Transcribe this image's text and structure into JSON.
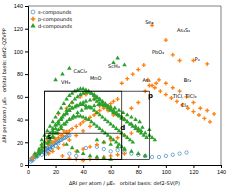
{
  "chart_data": {
    "type": "scatter",
    "title": "",
    "xlabel": "ΔRI per atom / μEₕ   orbital basis: def2-SV(P)",
    "ylabel": "ΔRI per atom / μEₕ   orbital basis: def2-QZVPP",
    "xlim": [
      0,
      140
    ],
    "ylim": [
      0,
      140
    ],
    "xticks": [
      0,
      20,
      40,
      60,
      80,
      100,
      120,
      140
    ],
    "yticks": [
      0,
      20,
      40,
      60,
      80,
      100,
      120,
      140
    ],
    "legend": "upper left",
    "series": [
      {
        "name": "s-compounds",
        "marker": "open-circle",
        "x": [
          2,
          3,
          4,
          5,
          5,
          6,
          7,
          8,
          9,
          10,
          11,
          12,
          13,
          14,
          15,
          16,
          17,
          18,
          19,
          20,
          21,
          22,
          23,
          24,
          25,
          8,
          9,
          12,
          14,
          16,
          18,
          20,
          22,
          7,
          10,
          13,
          15,
          17,
          6,
          4,
          3,
          2,
          26,
          27,
          28,
          29,
          30,
          42,
          50,
          55,
          60,
          65,
          70,
          75,
          80,
          85,
          90,
          95,
          100,
          105,
          110,
          115,
          30,
          35
        ],
        "values": [
          5,
          6,
          7,
          8,
          9,
          8,
          10,
          11,
          12,
          12,
          13,
          14,
          14,
          15,
          16,
          16,
          17,
          18,
          19,
          20,
          20,
          21,
          22,
          22,
          23,
          10,
          11,
          11,
          13,
          14,
          16,
          17,
          19,
          8,
          9,
          10,
          12,
          13,
          7,
          5,
          4,
          3,
          24,
          24,
          25,
          26,
          26,
          15,
          16,
          14,
          12,
          13,
          11,
          10,
          9,
          8,
          7,
          7,
          8,
          9,
          10,
          11,
          10,
          8
        ]
      },
      {
        "name": "p-compounds",
        "marker": "plus",
        "x": [
          5,
          8,
          10,
          12,
          15,
          18,
          20,
          22,
          25,
          28,
          30,
          32,
          35,
          38,
          40,
          42,
          45,
          48,
          50,
          52,
          55,
          58,
          60,
          62,
          65,
          70,
          75,
          80,
          85,
          90,
          95,
          100,
          105,
          110,
          115,
          120,
          125,
          130,
          135,
          68,
          72,
          76,
          80,
          84,
          88,
          92,
          96,
          100,
          104,
          108,
          112,
          116,
          120,
          124,
          128,
          132,
          90,
          100,
          105,
          110,
          120,
          130,
          87,
          93,
          15,
          18,
          22,
          26,
          30,
          35,
          40,
          45,
          3,
          6,
          25,
          30,
          35,
          40,
          45,
          50,
          55,
          60,
          65,
          70,
          22,
          28,
          32,
          38,
          42,
          48,
          52,
          58,
          62,
          68,
          14,
          18,
          22,
          26,
          10,
          16,
          20,
          24,
          28,
          35,
          40,
          45,
          50,
          55,
          60,
          65,
          70,
          75,
          80
        ],
        "values": [
          8,
          12,
          14,
          16,
          18,
          20,
          22,
          24,
          26,
          28,
          30,
          32,
          34,
          36,
          38,
          40,
          42,
          44,
          46,
          48,
          50,
          52,
          54,
          56,
          58,
          40,
          50,
          55,
          65,
          70,
          75,
          72,
          68,
          65,
          60,
          55,
          50,
          48,
          45,
          72,
          76,
          80,
          84,
          88,
          70,
          68,
          65,
          62,
          59,
          56,
          53,
          50,
          47,
          44,
          41,
          38,
          123,
          110,
          97,
          92,
          92,
          89,
          75,
          72,
          10,
          12,
          15,
          18,
          22,
          26,
          30,
          34,
          6,
          9,
          8,
          6,
          5,
          4,
          5,
          6,
          7,
          8,
          9,
          10,
          45,
          50,
          55,
          60,
          62,
          58,
          52,
          48,
          44,
          42,
          22,
          25,
          28,
          30,
          18,
          20,
          23,
          26,
          29,
          12,
          14,
          16,
          18,
          20,
          22,
          24,
          26,
          28,
          30
        ]
      },
      {
        "name": "d-compounds",
        "marker": "triangle",
        "x": [
          5,
          8,
          10,
          12,
          15,
          18,
          20,
          22,
          25,
          28,
          30,
          32,
          35,
          38,
          40,
          42,
          45,
          48,
          50,
          52,
          55,
          58,
          60,
          62,
          65,
          68,
          70,
          72,
          75,
          78,
          80,
          82,
          85,
          88,
          90,
          92,
          18,
          20,
          22,
          24,
          26,
          28,
          30,
          32,
          34,
          36,
          38,
          40,
          42,
          44,
          46,
          48,
          50,
          52,
          54,
          56,
          58,
          60,
          62,
          64,
          66,
          68,
          70,
          72,
          74,
          76,
          78,
          80,
          82,
          84,
          86,
          10,
          12,
          14,
          16,
          18,
          20,
          22,
          24,
          26,
          28,
          30,
          32,
          34,
          36,
          38,
          40,
          42,
          44,
          46,
          48,
          50,
          52,
          54,
          56,
          58,
          60,
          62,
          64,
          66,
          68,
          15,
          18,
          21,
          24,
          27,
          30,
          33,
          36,
          39,
          42,
          45,
          48,
          51,
          54,
          57,
          60,
          63,
          66,
          69,
          72,
          75,
          78,
          81,
          8,
          10,
          12,
          14,
          16,
          18,
          20,
          22,
          24,
          26,
          28,
          30,
          32,
          34,
          36,
          38,
          40,
          42,
          44,
          46,
          48,
          50,
          52,
          54,
          56,
          58,
          60,
          62,
          64,
          66,
          68,
          70,
          72,
          74,
          76,
          6,
          8,
          10,
          12,
          14,
          16,
          18,
          20,
          22,
          24,
          26,
          28,
          30,
          32,
          34,
          36,
          38,
          40,
          42,
          44,
          46,
          48,
          50,
          52,
          54,
          56,
          58,
          60,
          62,
          64,
          66,
          68,
          70,
          50,
          55,
          60,
          65,
          70,
          75,
          80,
          85,
          20,
          25,
          30,
          62,
          65,
          70,
          83,
          88,
          28,
          32,
          36,
          40,
          45,
          50,
          55,
          60
        ],
        "values": [
          10,
          14,
          18,
          20,
          25,
          30,
          35,
          38,
          42,
          45,
          48,
          50,
          52,
          54,
          55,
          56,
          57,
          58,
          56,
          54,
          52,
          50,
          48,
          46,
          44,
          42,
          40,
          38,
          36,
          34,
          32,
          30,
          28,
          26,
          24,
          22,
          28,
          32,
          36,
          40,
          44,
          48,
          52,
          55,
          58,
          60,
          62,
          63,
          64,
          64,
          63,
          62,
          60,
          58,
          56,
          54,
          52,
          50,
          48,
          46,
          44,
          42,
          40,
          38,
          36,
          34,
          32,
          30,
          28,
          26,
          24,
          22,
          26,
          30,
          34,
          38,
          42,
          46,
          50,
          54,
          58,
          61,
          63,
          65,
          66,
          67,
          67,
          66,
          65,
          63,
          61,
          59,
          57,
          55,
          53,
          51,
          49,
          47,
          45,
          43,
          41,
          20,
          24,
          28,
          32,
          36,
          40,
          43,
          46,
          48,
          50,
          51,
          52,
          53,
          53,
          52,
          51,
          50,
          48,
          46,
          44,
          42,
          40,
          38,
          12,
          16,
          20,
          24,
          28,
          32,
          35,
          38,
          41,
          44,
          46,
          48,
          50,
          51,
          52,
          53,
          53,
          52,
          51,
          50,
          48,
          46,
          44,
          42,
          40,
          38,
          36,
          34,
          32,
          30,
          28,
          26,
          24,
          22,
          20,
          8,
          10,
          13,
          16,
          19,
          22,
          25,
          28,
          31,
          34,
          36,
          38,
          40,
          41,
          42,
          43,
          43,
          42,
          41,
          40,
          38,
          36,
          34,
          32,
          30,
          28,
          26,
          24,
          22,
          20,
          18,
          16,
          14,
          22,
          20,
          18,
          16,
          14,
          12,
          10,
          8,
          75,
          80,
          85,
          90,
          94,
          88,
          33,
          31,
          18,
          15,
          12,
          10,
          8,
          7,
          6,
          5
        ]
      }
    ],
    "boxes": [
      {
        "x0": 12,
        "x1": 68,
        "y0": 5,
        "y1": 28,
        "label": "s",
        "label_x": 14,
        "label_y": 23
      },
      {
        "x0": 12,
        "x1": 68,
        "y0": 5,
        "y1": 65,
        "label": "d",
        "label_x": 67,
        "label_y": 31
      },
      {
        "x0": 12,
        "x1": 88,
        "y0": 5,
        "y1": 65,
        "label": "p",
        "label_x": 87,
        "label_y": 59
      }
    ],
    "annotations": [
      {
        "text": "Se₈",
        "x": 85,
        "y": 124
      },
      {
        "text": "As₄S₄",
        "x": 108,
        "y": 117
      },
      {
        "text": "PbO₂",
        "x": 90,
        "y": 98
      },
      {
        "text": "P₄",
        "x": 121,
        "y": 92
      },
      {
        "text": "As₄",
        "x": 83,
        "y": 73
      },
      {
        "text": "Br₂",
        "x": 113,
        "y": 73
      },
      {
        "text": "TlCl, TlCl₃",
        "x": 105,
        "y": 59
      },
      {
        "text": "Cl₂",
        "x": 111,
        "y": 51
      },
      {
        "text": "ScH₃",
        "x": 58,
        "y": 85
      },
      {
        "text": "MnO",
        "x": 45,
        "y": 75
      },
      {
        "text": "CaCl₂",
        "x": 33,
        "y": 81
      },
      {
        "text": "VH₃",
        "x": 24,
        "y": 71
      }
    ]
  }
}
